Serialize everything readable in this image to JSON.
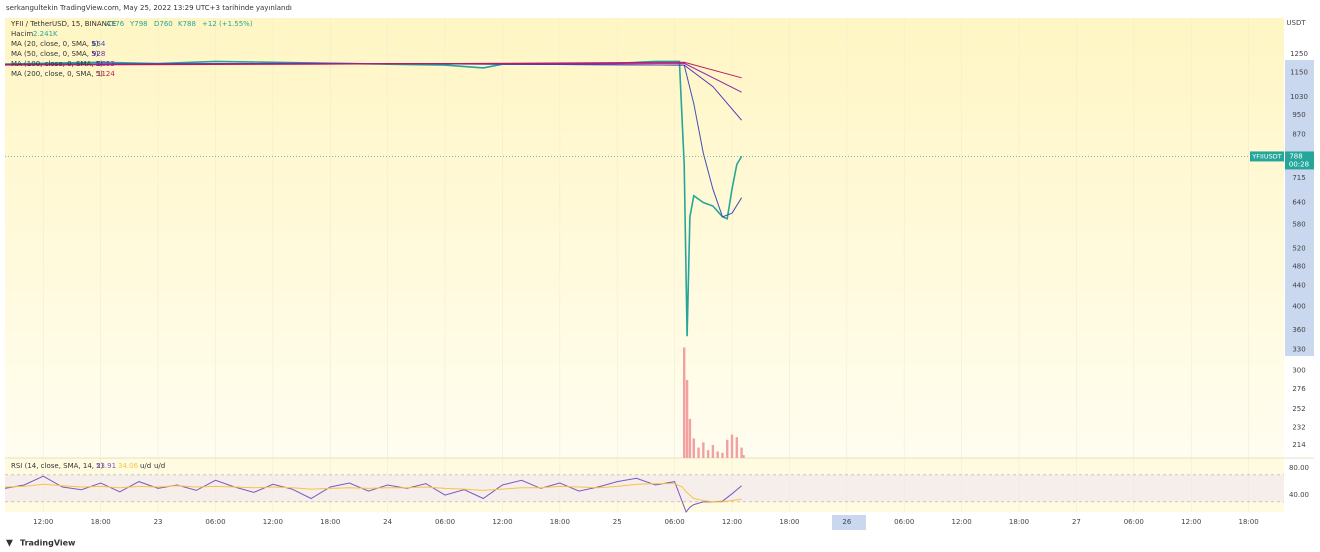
{
  "header": "serkangultekin TradingView.com, May 25, 2022 13:29 UTC+3 tarihinde yayınlandı",
  "footer": "TradingView",
  "chart_data": [
    {
      "type": "line",
      "log_scale": true,
      "currency": "USDT",
      "ticker": "YFIIUSDT",
      "countdown": "00:28",
      "ohlc": [
        "A776",
        "Y798",
        "D760",
        "K788"
      ],
      "change": "+12 (+1.55%)",
      "xlim": [
        8,
        141.7
      ],
      "ylim": [
        202,
        1472
      ],
      "yticks": [
        1250,
        1150,
        1030,
        950,
        870,
        715,
        640,
        580,
        520,
        480,
        440,
        400,
        360,
        330,
        300,
        276,
        252,
        232,
        214
      ],
      "xticks": [
        {
          "value": 12,
          "label": "12:00"
        },
        {
          "value": 18,
          "label": "18:00"
        },
        {
          "value": 24,
          "label": "23"
        },
        {
          "value": 30,
          "label": "06:00"
        },
        {
          "value": 36,
          "label": "12:00"
        },
        {
          "value": 42,
          "label": "18:00"
        },
        {
          "value": 48,
          "label": "24"
        },
        {
          "value": 54,
          "label": "06:00"
        },
        {
          "value": 60,
          "label": "12:00"
        },
        {
          "value": 66,
          "label": "18:00"
        },
        {
          "value": 72,
          "label": "25"
        },
        {
          "value": 78,
          "label": "06:00"
        },
        {
          "value": 84,
          "label": "12:00"
        },
        {
          "value": 90,
          "label": "18:00"
        },
        {
          "value": 96,
          "label": "26"
        },
        {
          "value": 102,
          "label": "06:00"
        },
        {
          "value": 108,
          "label": "12:00"
        },
        {
          "value": 114,
          "label": "18:00"
        },
        {
          "value": 120,
          "label": "27"
        },
        {
          "value": 126,
          "label": "06:00"
        },
        {
          "value": 132,
          "label": "12:00"
        },
        {
          "value": 138,
          "label": "18:00"
        }
      ],
      "series": [
        {
          "name": "YFII / TetherUSD, 15, BINANCE",
          "color": "#26a69a",
          "x": [
            8,
            12,
            18,
            24,
            30,
            36,
            42,
            48,
            54,
            58,
            60,
            66,
            72,
            76,
            78.5,
            79,
            79.3,
            79.6,
            80,
            81,
            82,
            83,
            83.5,
            84,
            84.5,
            85
          ],
          "values": [
            1195,
            1200,
            1205,
            1198,
            1210,
            1205,
            1200,
            1195,
            1190,
            1175,
            1195,
            1195,
            1200,
            1210,
            1210,
            760,
            350,
            600,
            660,
            640,
            630,
            600,
            595,
            680,
            760,
            788
          ]
        },
        {
          "name": "MA (20, close, 0, SMA, 5)",
          "color": "#3f51b5",
          "x": [
            8,
            40,
            79,
            80,
            81,
            82,
            83,
            84,
            85
          ],
          "values": [
            1195,
            1200,
            1190,
            1000,
            800,
            680,
            600,
            610,
            654
          ]
        },
        {
          "name": "MA (50, close, 0, SMA, 5)",
          "color": "#5e35b1",
          "x": [
            8,
            40,
            79,
            82,
            85
          ],
          "values": [
            1195,
            1200,
            1190,
            1080,
            928
          ]
        },
        {
          "name": "MA (100, close, 0, SMA, 5)",
          "color": "#8e24aa",
          "x": [
            8,
            40,
            79,
            85
          ],
          "values": [
            1192,
            1198,
            1200,
            1053
          ]
        },
        {
          "name": "MA (200, close, 0, SMA, 5)",
          "color": "#c2185b",
          "x": [
            8,
            40,
            79,
            85
          ],
          "values": [
            1190,
            1195,
            1205,
            1124
          ]
        }
      ]
    },
    {
      "type": "bar",
      "name": "Hacim",
      "last_label": "2.241K",
      "color": "#f2a0a0",
      "ylim": [
        0,
        100
      ],
      "x": [
        79,
        79.3,
        79.6,
        80,
        80.5,
        81,
        81.5,
        82,
        82.5,
        83,
        83.5,
        84,
        84.5,
        85,
        85.2
      ],
      "values": [
        85,
        60,
        30,
        15,
        8,
        12,
        6,
        10,
        5,
        4,
        14,
        18,
        16,
        8,
        2.241
      ]
    },
    {
      "type": "line",
      "title": "RSI (14, close, SMA, 14, 2)",
      "status_labels": [
        "u/d",
        "u/d"
      ],
      "ylim": [
        15,
        95
      ],
      "yticks": [
        {
          "value": 80,
          "label": "80.00"
        },
        {
          "value": 40,
          "label": "40.00"
        }
      ],
      "bands": [
        70,
        30
      ],
      "series": [
        {
          "color": "#7e57c2",
          "x": [
            8,
            10,
            12,
            14,
            16,
            18,
            20,
            22,
            24,
            26,
            28,
            30,
            32,
            34,
            36,
            38,
            40,
            42,
            44,
            46,
            48,
            50,
            52,
            54,
            56,
            58,
            60,
            62,
            64,
            66,
            68,
            70,
            72,
            74,
            76,
            78,
            78.8,
            79.2,
            79.6,
            80,
            81,
            82,
            83,
            84,
            85
          ],
          "values": [
            50,
            55,
            68,
            52,
            48,
            58,
            45,
            60,
            50,
            55,
            47,
            62,
            52,
            44,
            56,
            49,
            35,
            52,
            58,
            46,
            55,
            50,
            57,
            40,
            48,
            35,
            55,
            62,
            50,
            58,
            46,
            52,
            60,
            65,
            55,
            60,
            30,
            15,
            22,
            26,
            30,
            30,
            31,
            42,
            53.91
          ]
        },
        {
          "color": "#f5c542",
          "x": [
            8,
            10,
            12,
            14,
            16,
            18,
            20,
            22,
            24,
            26,
            28,
            30,
            32,
            34,
            36,
            38,
            40,
            42,
            44,
            46,
            48,
            50,
            52,
            54,
            56,
            58,
            60,
            62,
            64,
            66,
            68,
            70,
            72,
            74,
            76,
            78,
            78.8,
            79.2,
            79.6,
            80,
            81,
            82,
            83,
            84,
            85
          ],
          "values": [
            52,
            53,
            56,
            54,
            52,
            53,
            51,
            53,
            52,
            54,
            52,
            53,
            52,
            51,
            52,
            51,
            49,
            50,
            51,
            50,
            51,
            51,
            52,
            50,
            49,
            47,
            49,
            51,
            51,
            53,
            52,
            51,
            53,
            56,
            57,
            57,
            52,
            45,
            40,
            35,
            32,
            30,
            30,
            32,
            34.06
          ]
        }
      ]
    }
  ]
}
